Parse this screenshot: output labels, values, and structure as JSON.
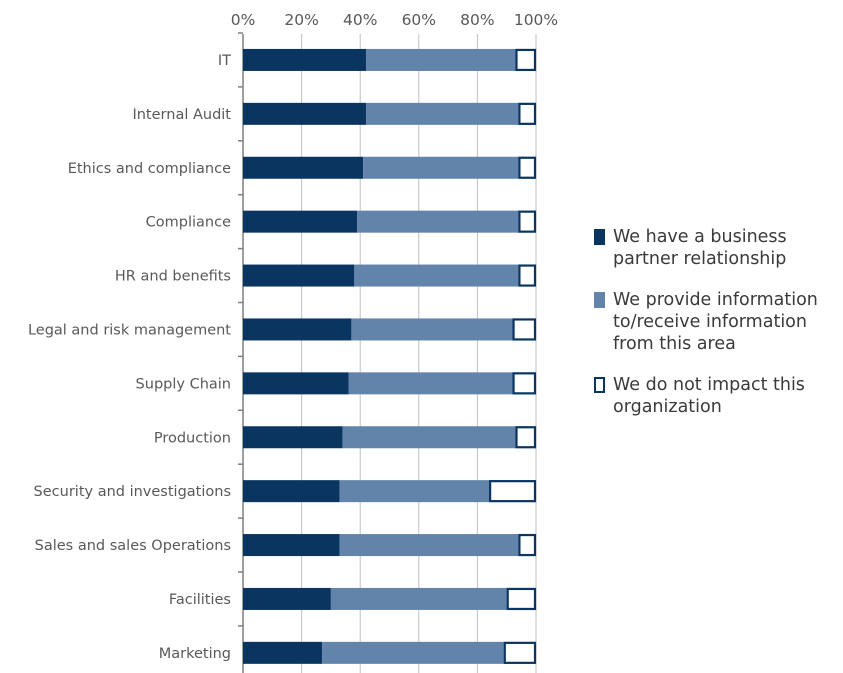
{
  "chart_data": {
    "type": "bar",
    "orientation": "horizontal",
    "stacked": true,
    "xlim": [
      0,
      100
    ],
    "x_ticks": [
      "0%",
      "20%",
      "40%",
      "60%",
      "80%",
      "100%"
    ],
    "x_axis_position": "top",
    "grid": true,
    "legend_position": "right",
    "categories": [
      "IT",
      "Internal Audit",
      "Ethics and compliance",
      "Compliance",
      "HR and benefits",
      "Legal and risk management",
      "Supply Chain",
      "Production",
      "Security and investigations",
      "Sales and sales Operations",
      "Facilities",
      "Marketing"
    ],
    "series": [
      {
        "name": "We have a business partner relationship",
        "color": "#0a3560",
        "values": [
          42,
          42,
          41,
          39,
          38,
          37,
          36,
          34,
          33,
          33,
          30,
          27
        ]
      },
      {
        "name": "We provide information to/receive information from this area",
        "color": "#6283aa",
        "values": [
          51,
          52,
          53,
          55,
          56,
          55,
          56,
          59,
          51,
          61,
          60,
          62
        ]
      },
      {
        "name": "We do not impact this organization",
        "color": "#ffffff",
        "values": [
          7,
          6,
          6,
          6,
          6,
          8,
          8,
          7,
          16,
          6,
          10,
          11
        ]
      }
    ]
  }
}
